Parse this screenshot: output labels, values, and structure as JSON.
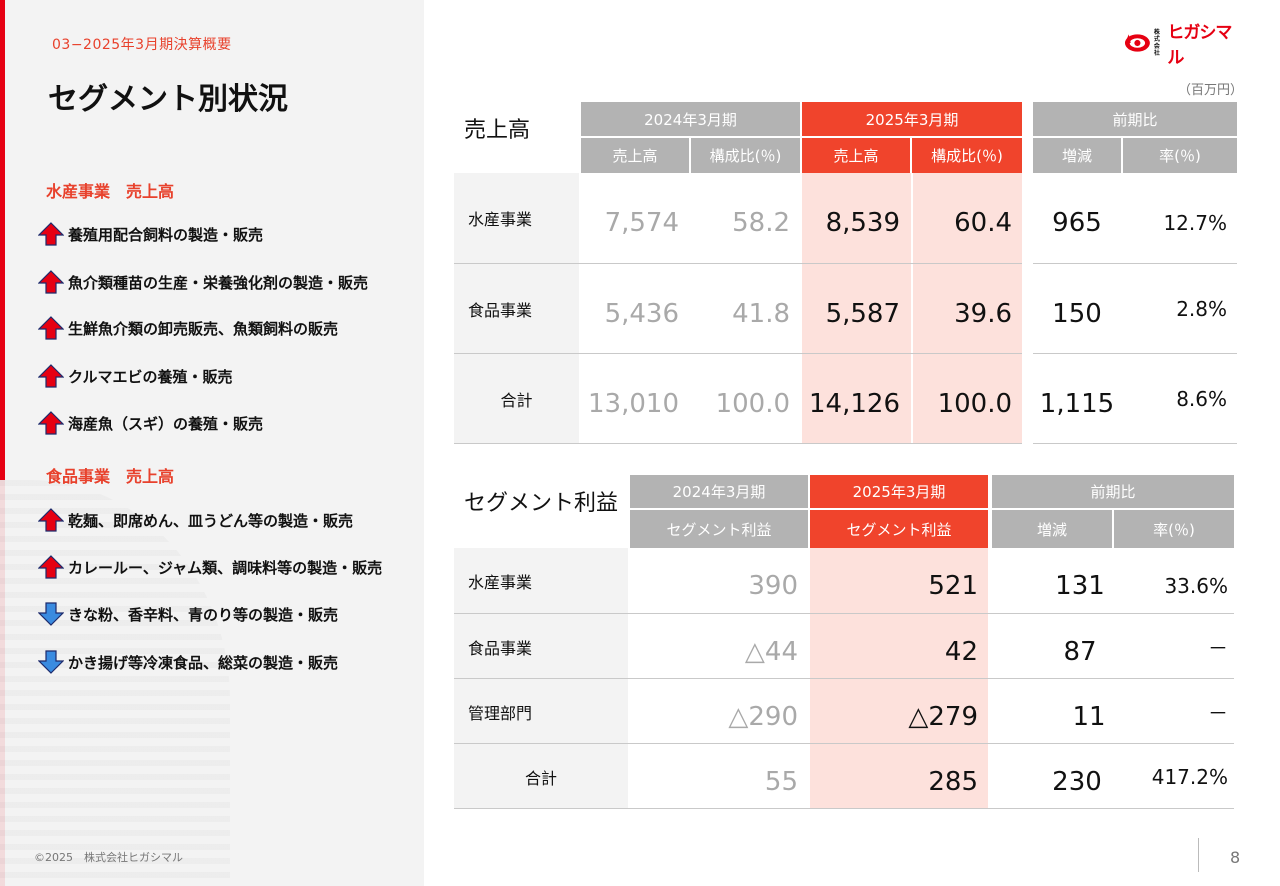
{
  "header": {
    "section_label": "03−2025年3月期決算概要",
    "title": "セグメント別状況",
    "unit": "（百万円）",
    "logo": {
      "small_line1": "株式",
      "small_line2": "会社",
      "name": "ヒガシマル"
    }
  },
  "left": {
    "suisan_title": "水産事業　売上高",
    "suisan_items": [
      {
        "icon": "up-arrow-icon",
        "text": "養殖用配合飼料の製造・販売"
      },
      {
        "icon": "up-arrow-icon",
        "text": "魚介類種苗の生産・栄養強化剤の製造・販売"
      },
      {
        "icon": "up-arrow-icon",
        "text": "生鮮魚介類の卸売販売、魚類飼料の販売"
      },
      {
        "icon": "up-arrow-icon",
        "text": "クルマエビの養殖・販売"
      },
      {
        "icon": "up-arrow-icon",
        "text": "海産魚（スギ）の養殖・販売"
      }
    ],
    "shokuhin_title": "食品事業　売上高",
    "shokuhin_items": [
      {
        "icon": "up-arrow-icon",
        "text": "乾麺、即席めん、皿うどん等の製造・販売"
      },
      {
        "icon": "up-arrow-icon",
        "text": "カレールー、ジャム類、調味料等の製造・販売"
      },
      {
        "icon": "down-arrow-icon",
        "text": "きな粉、香辛料、青のり等の製造・販売"
      },
      {
        "icon": "down-arrow-icon",
        "text": "かき揚げ等冷凍食品、総菜の製造・販売"
      }
    ]
  },
  "sales": {
    "title": "売上高",
    "period_prev": "2024年3月期",
    "period_curr": "2025年3月期",
    "period_comp": "前期比",
    "col_sales": "売上高",
    "col_ratio": "構成比(％)",
    "col_diff": "増減",
    "col_rate": "率(％)",
    "rows": [
      {
        "label": "水産事業",
        "prev_sales": "7,574",
        "prev_ratio": "58.2",
        "curr_sales": "8,539",
        "curr_ratio": "60.4",
        "diff": "965",
        "rate": "12.7%"
      },
      {
        "label": "食品事業",
        "prev_sales": "5,436",
        "prev_ratio": "41.8",
        "curr_sales": "5,587",
        "curr_ratio": "39.6",
        "diff": "150",
        "rate": "2.8%"
      },
      {
        "label": "合計",
        "prev_sales": "13,010",
        "prev_ratio": "100.0",
        "curr_sales": "14,126",
        "curr_ratio": "100.0",
        "diff": "1,115",
        "rate": "8.6%"
      }
    ]
  },
  "profit": {
    "title": "セグメント利益",
    "period_prev": "2024年3月期",
    "period_curr": "2025年3月期",
    "period_comp": "前期比",
    "col_profit": "セグメント利益",
    "col_diff": "増減",
    "col_rate": "率(％)",
    "rows": [
      {
        "label": "水産事業",
        "prev": "390",
        "curr": "521",
        "diff": "131",
        "rate": "33.6%"
      },
      {
        "label": "食品事業",
        "prev": "△44",
        "curr": "42",
        "diff": "87",
        "rate": "－"
      },
      {
        "label": "管理部門",
        "prev": "△290",
        "curr": "△279",
        "diff": "11",
        "rate": "－"
      },
      {
        "label": "合計",
        "prev": "55",
        "curr": "285",
        "diff": "230",
        "rate": "417.2%"
      }
    ]
  },
  "footer": {
    "copyright": "©2025　株式会社ヒガシマル",
    "page": "8"
  },
  "colors": {
    "accent_red": "#e60012",
    "header_red": "#f0442c",
    "header_gray": "#b3b3b3",
    "highlight_pink": "#fde1dc"
  }
}
